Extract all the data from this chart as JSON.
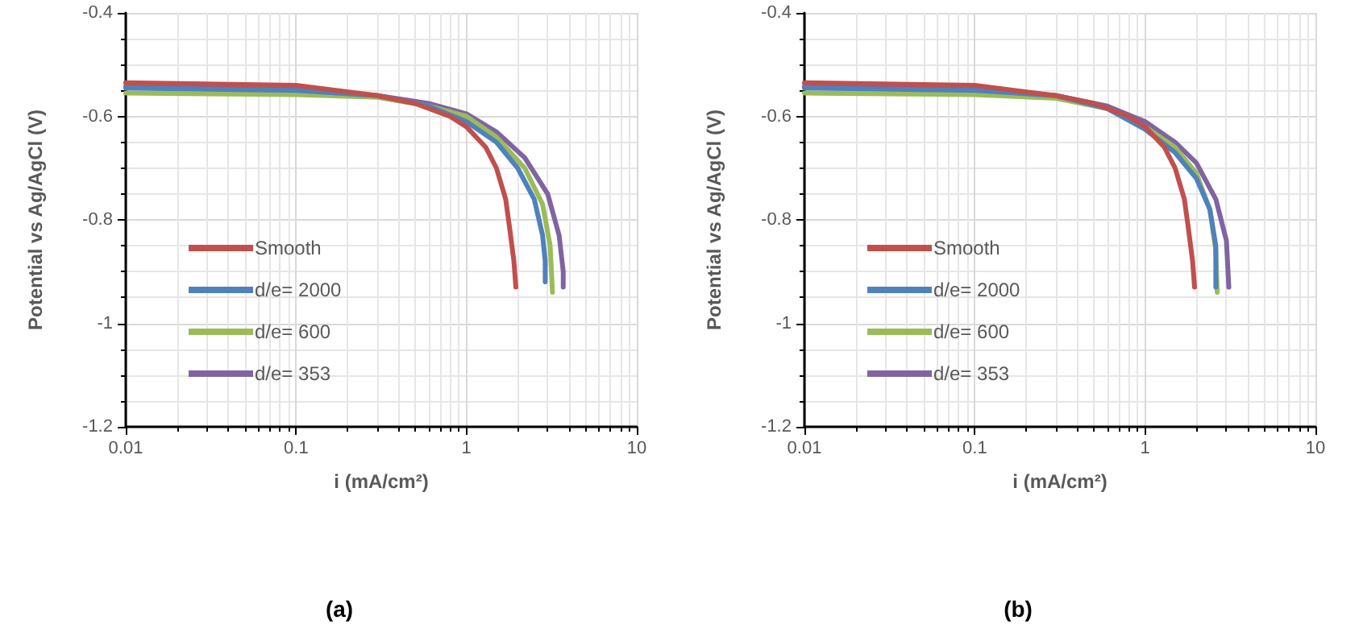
{
  "chart_data": [
    {
      "type": "line",
      "title": "(a)",
      "xlabel": "i (mA/cm²)",
      "ylabel": "Potential vs Ag/AgCl (V)",
      "log": "x",
      "xlim": [
        0.01,
        10
      ],
      "xticks": [
        0.01,
        0.1,
        1,
        10
      ],
      "ylim": [
        -1.2,
        -0.4
      ],
      "yticks": [
        -1.2,
        -1,
        -0.8,
        -0.6,
        -0.4
      ],
      "grid": true,
      "legend": "bottom left",
      "series": [
        {
          "name": "Smooth",
          "color": "#c0504d",
          "x": [
            0.01,
            0.1,
            0.3,
            0.5,
            0.8,
            1.0,
            1.3,
            1.5,
            1.7,
            1.8,
            1.9,
            1.95
          ],
          "values": [
            -0.535,
            -0.54,
            -0.56,
            -0.575,
            -0.6,
            -0.62,
            -0.66,
            -0.7,
            -0.76,
            -0.82,
            -0.88,
            -0.93
          ]
        },
        {
          "name": "d/e= 2000",
          "color": "#4f81bd",
          "x": [
            0.01,
            0.1,
            0.3,
            0.6,
            1,
            1.5,
            2,
            2.5,
            2.8,
            2.9,
            2.9
          ],
          "values": [
            -0.545,
            -0.55,
            -0.56,
            -0.58,
            -0.61,
            -0.65,
            -0.7,
            -0.76,
            -0.83,
            -0.88,
            -0.92
          ]
        },
        {
          "name": "d/e= 600",
          "color": "#9bbb59",
          "x": [
            0.01,
            0.1,
            0.3,
            0.6,
            1,
            1.5,
            2.2,
            2.8,
            3.1,
            3.2
          ],
          "values": [
            -0.555,
            -0.558,
            -0.563,
            -0.58,
            -0.6,
            -0.64,
            -0.7,
            -0.77,
            -0.85,
            -0.94
          ]
        },
        {
          "name": "d/e= 353",
          "color": "#8064a2",
          "x": [
            0.01,
            0.1,
            0.3,
            0.6,
            1,
            1.5,
            2.2,
            3,
            3.5,
            3.7,
            3.7
          ],
          "values": [
            -0.542,
            -0.548,
            -0.56,
            -0.575,
            -0.595,
            -0.63,
            -0.68,
            -0.75,
            -0.83,
            -0.9,
            -0.93
          ]
        }
      ]
    },
    {
      "type": "line",
      "title": "(b)",
      "xlabel": "i (mA/cm²)",
      "ylabel": "Potential vs Ag/AgCl (V)",
      "log": "x",
      "xlim": [
        0.01,
        10
      ],
      "xticks": [
        0.01,
        0.1,
        1,
        10
      ],
      "ylim": [
        -1.2,
        -0.4
      ],
      "yticks": [
        -1.2,
        -1,
        -0.8,
        -0.6,
        -0.4
      ],
      "grid": true,
      "legend": "bottom left",
      "series": [
        {
          "name": "Smooth",
          "color": "#c0504d",
          "x": [
            0.01,
            0.1,
            0.3,
            0.5,
            0.8,
            1.0,
            1.3,
            1.5,
            1.7,
            1.8,
            1.9,
            1.95
          ],
          "values": [
            -0.535,
            -0.54,
            -0.56,
            -0.575,
            -0.6,
            -0.62,
            -0.66,
            -0.7,
            -0.76,
            -0.82,
            -0.88,
            -0.93
          ]
        },
        {
          "name": "d/e= 2000",
          "color": "#4f81bd",
          "x": [
            0.01,
            0.1,
            0.3,
            0.6,
            1,
            1.5,
            2,
            2.4,
            2.6,
            2.6
          ],
          "values": [
            -0.545,
            -0.55,
            -0.56,
            -0.585,
            -0.625,
            -0.67,
            -0.72,
            -0.78,
            -0.85,
            -0.93
          ]
        },
        {
          "name": "d/e= 600",
          "color": "#9bbb59",
          "x": [
            0.01,
            0.1,
            0.3,
            0.6,
            1,
            1.5,
            2,
            2.4,
            2.6,
            2.65
          ],
          "values": [
            -0.555,
            -0.558,
            -0.565,
            -0.585,
            -0.62,
            -0.66,
            -0.71,
            -0.78,
            -0.86,
            -0.94
          ]
        },
        {
          "name": "d/e= 353",
          "color": "#8064a2",
          "x": [
            0.01,
            0.1,
            0.3,
            0.6,
            1,
            1.5,
            2,
            2.6,
            3,
            3.1
          ],
          "values": [
            -0.542,
            -0.548,
            -0.56,
            -0.58,
            -0.61,
            -0.65,
            -0.69,
            -0.76,
            -0.84,
            -0.93
          ]
        }
      ]
    }
  ]
}
